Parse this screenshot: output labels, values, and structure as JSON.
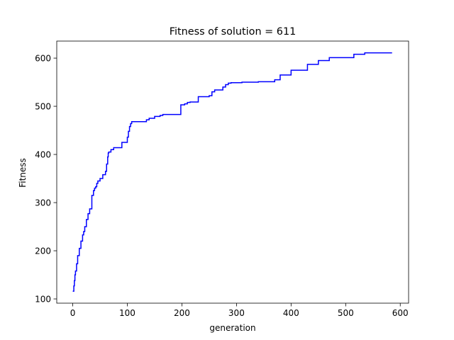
{
  "chart_data": {
    "type": "line",
    "title": "Fitness of solution = 611",
    "xlabel": "generation",
    "ylabel": "Fitness",
    "xlim": [
      -29.3,
      615.3
    ],
    "ylim": [
      91.2,
      635.4
    ],
    "xticks": [
      0,
      100,
      200,
      300,
      400,
      500,
      600
    ],
    "yticks": [
      100,
      200,
      300,
      400,
      500,
      600
    ],
    "xtick_labels": [
      "0",
      "100",
      "200",
      "300",
      "400",
      "500",
      "600"
    ],
    "ytick_labels": [
      "100",
      "200",
      "300",
      "400",
      "500",
      "600"
    ],
    "grid": false,
    "legend": "none",
    "series": [
      {
        "color": "#0000ff",
        "step": true,
        "x": [
          0,
          2,
          3,
          4,
          5,
          7,
          9,
          12,
          15,
          18,
          20,
          22,
          25,
          28,
          31,
          35,
          38,
          40,
          42,
          44,
          46,
          50,
          55,
          60,
          62,
          64,
          65,
          66,
          70,
          75,
          90,
          100,
          102,
          104,
          106,
          108,
          110,
          135,
          140,
          150,
          160,
          165,
          170,
          198,
          205,
          210,
          215,
          230,
          250,
          255,
          260,
          275,
          280,
          285,
          290,
          310,
          340,
          370,
          380,
          400,
          430,
          450,
          470,
          515,
          535,
          585
        ],
        "y": [
          116,
          127,
          138,
          150,
          158,
          173,
          190,
          205,
          220,
          233,
          240,
          250,
          265,
          277,
          287,
          315,
          325,
          330,
          333,
          340,
          345,
          350,
          358,
          365,
          380,
          395,
          403,
          405,
          410,
          414,
          425,
          436,
          448,
          458,
          464,
          468,
          468,
          472,
          475,
          479,
          481,
          483,
          483,
          503,
          505,
          508,
          509,
          520,
          522,
          530,
          534,
          540,
          545,
          548,
          549,
          550,
          551,
          555,
          565,
          575,
          587,
          595,
          601,
          608,
          611,
          611
        ]
      }
    ]
  }
}
